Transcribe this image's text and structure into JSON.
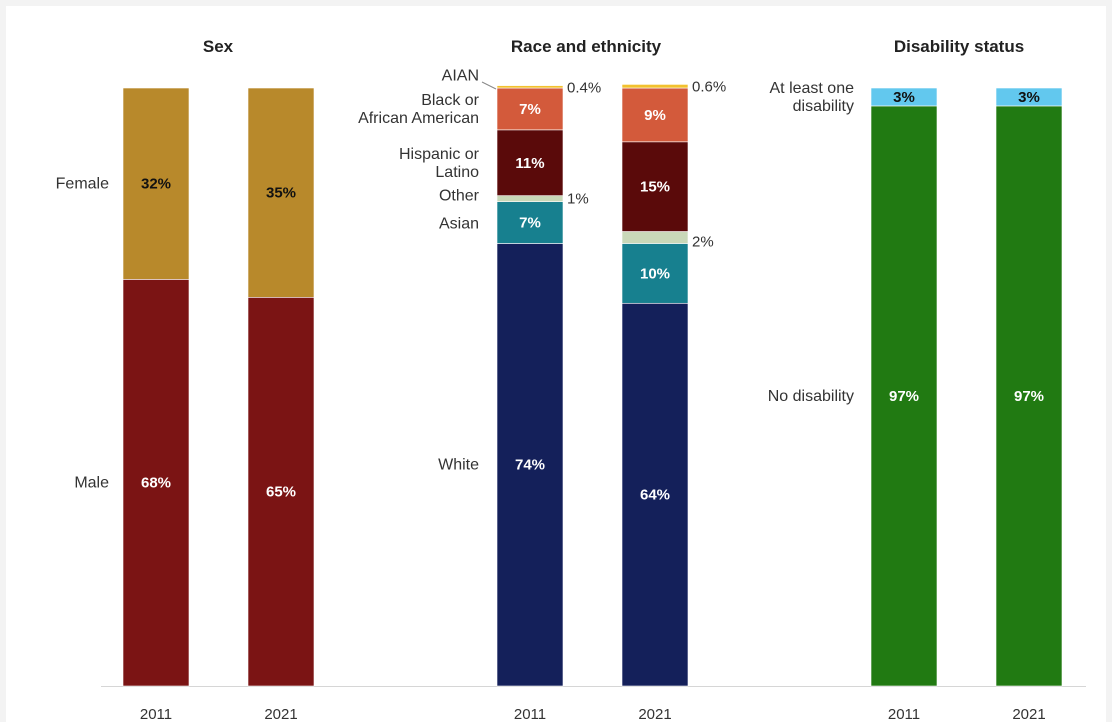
{
  "chart_data": [
    {
      "type": "bar",
      "stacked": true,
      "title": "Sex",
      "categories": [
        "2011",
        "2021"
      ],
      "series": [
        {
          "name": "Male",
          "values": [
            68,
            65
          ],
          "labels": [
            "68%",
            "65%"
          ],
          "color": "#7b1414",
          "label_color": "#ffffff"
        },
        {
          "name": "Female",
          "values": [
            32,
            35
          ],
          "labels": [
            "32%",
            "35%"
          ],
          "color": "#b8892b",
          "label_color": "#111111"
        }
      ],
      "ylim": [
        0,
        100
      ]
    },
    {
      "type": "bar",
      "stacked": true,
      "title": "Race and ethnicity",
      "categories": [
        "2011",
        "2021"
      ],
      "series": [
        {
          "name": "White",
          "values": [
            74,
            64
          ],
          "labels": [
            "74%",
            "64%"
          ],
          "color": "#14205a",
          "label_color": "#ffffff"
        },
        {
          "name": "Asian",
          "values": [
            7,
            10
          ],
          "labels": [
            "7%",
            "10%"
          ],
          "color": "#17808f",
          "label_color": "#ffffff"
        },
        {
          "name": "Other",
          "values": [
            1,
            2
          ],
          "labels": [
            "1%",
            "2%"
          ],
          "color": "#c9d8b8",
          "label_color": "#333333",
          "outside": true
        },
        {
          "name": "Hispanic or Latino",
          "values": [
            11,
            15
          ],
          "labels": [
            "11%",
            "15%"
          ],
          "color": "#5a0a0a",
          "label_color": "#ffffff"
        },
        {
          "name": "Black or African American",
          "values": [
            7,
            9
          ],
          "labels": [
            "7%",
            "9%"
          ],
          "color": "#d35a3b",
          "label_color": "#ffffff"
        },
        {
          "name": "AIAN",
          "values": [
            0.4,
            0.6
          ],
          "labels": [
            "0.4%",
            "0.6%"
          ],
          "color": "#f2c12e",
          "label_color": "#333333",
          "outside": true
        }
      ],
      "ylim": [
        0,
        100
      ]
    },
    {
      "type": "bar",
      "stacked": true,
      "title": "Disability status",
      "categories": [
        "2011",
        "2021"
      ],
      "series": [
        {
          "name": "No disability",
          "values": [
            97,
            97
          ],
          "labels": [
            "97%",
            "97%"
          ],
          "color": "#217a12",
          "label_color": "#ffffff"
        },
        {
          "name": "At least one disability",
          "values": [
            3,
            3
          ],
          "labels": [
            "3%",
            "3%"
          ],
          "color": "#62c8ee",
          "label_color": "#111111"
        }
      ],
      "ylim": [
        0,
        100
      ]
    }
  ]
}
